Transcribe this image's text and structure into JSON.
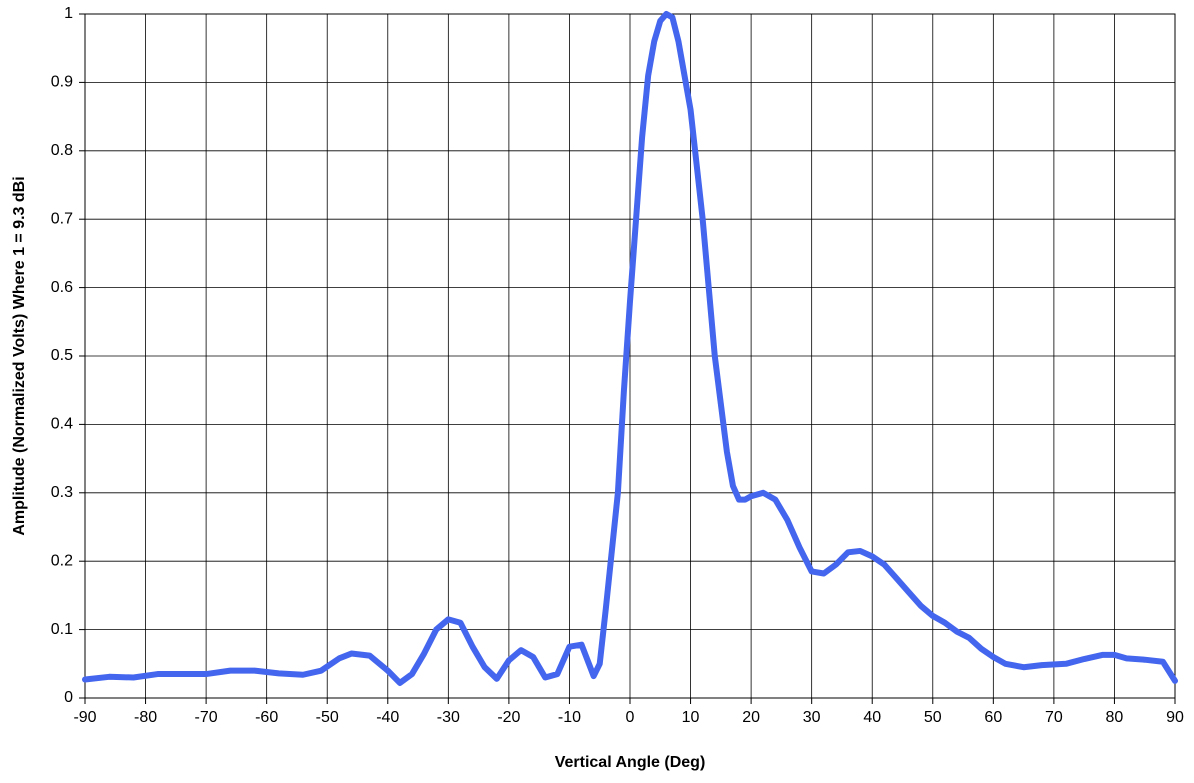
{
  "chart_data": {
    "type": "line",
    "x_label": "Vertical Angle (Deg)",
    "y_label": "Amplitude (Normalized Volts) Where 1 = 9.3 dBi",
    "x": [
      -90,
      -86,
      -82,
      -78,
      -74,
      -70,
      -66,
      -62,
      -58,
      -54,
      -51,
      -48,
      -46,
      -43,
      -40,
      -38,
      -36,
      -34,
      -32,
      -30,
      -28,
      -26,
      -24,
      -22,
      -20,
      -18,
      -16,
      -14,
      -12,
      -10,
      -8,
      -6,
      -5,
      -4,
      -2,
      -1,
      0,
      1,
      2,
      3,
      4,
      5,
      6,
      7,
      8,
      9,
      10,
      11,
      12,
      13,
      14,
      15,
      16,
      17,
      18,
      19,
      20,
      22,
      24,
      26,
      28,
      30,
      32,
      34,
      36,
      38,
      40,
      42,
      44,
      46,
      48,
      50,
      52,
      54,
      56,
      58,
      60,
      62,
      65,
      68,
      72,
      75,
      78,
      80,
      82,
      85,
      88,
      90
    ],
    "series": [
      {
        "color": "#4466ee",
        "values": [
          0.027,
          0.031,
          0.03,
          0.035,
          0.035,
          0.035,
          0.04,
          0.04,
          0.036,
          0.034,
          0.04,
          0.058,
          0.065,
          0.062,
          0.04,
          0.022,
          0.035,
          0.065,
          0.1,
          0.115,
          0.11,
          0.075,
          0.045,
          0.028,
          0.055,
          0.07,
          0.06,
          0.03,
          0.035,
          0.075,
          0.078,
          0.032,
          0.05,
          0.13,
          0.3,
          0.45,
          0.58,
          0.7,
          0.82,
          0.91,
          0.96,
          0.99,
          1.0,
          0.995,
          0.96,
          0.91,
          0.86,
          0.78,
          0.7,
          0.6,
          0.5,
          0.43,
          0.36,
          0.31,
          0.29,
          0.29,
          0.295,
          0.3,
          0.29,
          0.26,
          0.22,
          0.185,
          0.182,
          0.195,
          0.213,
          0.215,
          0.207,
          0.195,
          0.175,
          0.155,
          0.135,
          0.12,
          0.11,
          0.097,
          0.088,
          0.072,
          0.06,
          0.05,
          0.045,
          0.048,
          0.05,
          0.057,
          0.063,
          0.063,
          0.058,
          0.056,
          0.053,
          0.025
        ]
      }
    ],
    "xlim": [
      -90,
      90
    ],
    "xticks": [
      -90,
      -80,
      -70,
      -60,
      -50,
      -40,
      -30,
      -20,
      -10,
      0,
      10,
      20,
      30,
      40,
      50,
      60,
      70,
      80,
      90
    ],
    "ylim": [
      0,
      1
    ],
    "yticks": [
      0,
      0.1,
      0.2,
      0.3,
      0.4,
      0.5,
      0.6,
      0.7,
      0.8,
      0.9,
      1
    ],
    "grid": true
  }
}
